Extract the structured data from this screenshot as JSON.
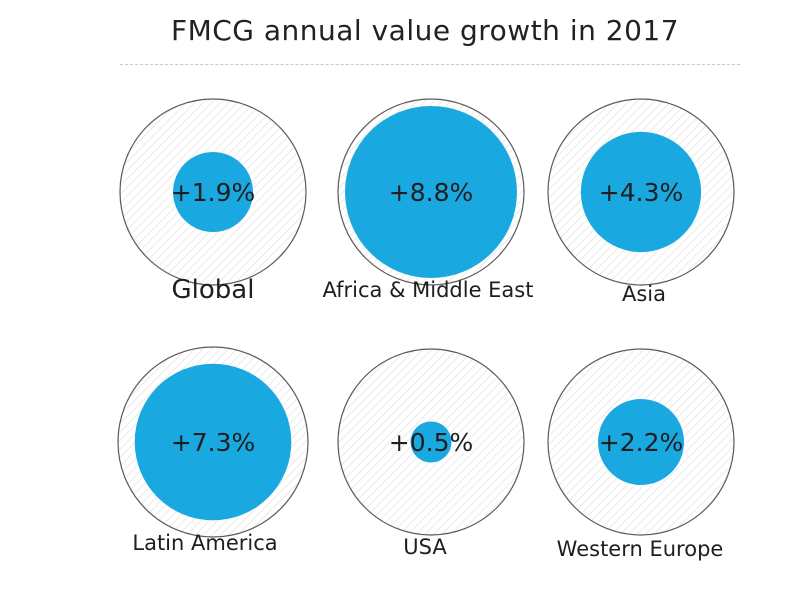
{
  "chart_data": {
    "type": "bubble",
    "title": "FMCG annual value growth in 2017",
    "unit": "%",
    "max_value": 8.8,
    "colors": {
      "bubble": "#1aa8e0",
      "outer_stroke": "#5a5a5a",
      "hatch": "#dcdcdc",
      "text": "#1e1e1e"
    },
    "regions": [
      {
        "name": "Global",
        "value": 1.9,
        "label": "+1.9%"
      },
      {
        "name": "Africa & Middle East",
        "value": 8.8,
        "label": "+8.8%"
      },
      {
        "name": "Asia",
        "value": 4.3,
        "label": "+4.3%"
      },
      {
        "name": "Latin America",
        "value": 7.3,
        "label": "+7.3%"
      },
      {
        "name": "USA",
        "value": 0.5,
        "label": "+0.5%"
      },
      {
        "name": "Western Europe",
        "value": 2.2,
        "label": "+2.2%"
      }
    ]
  }
}
